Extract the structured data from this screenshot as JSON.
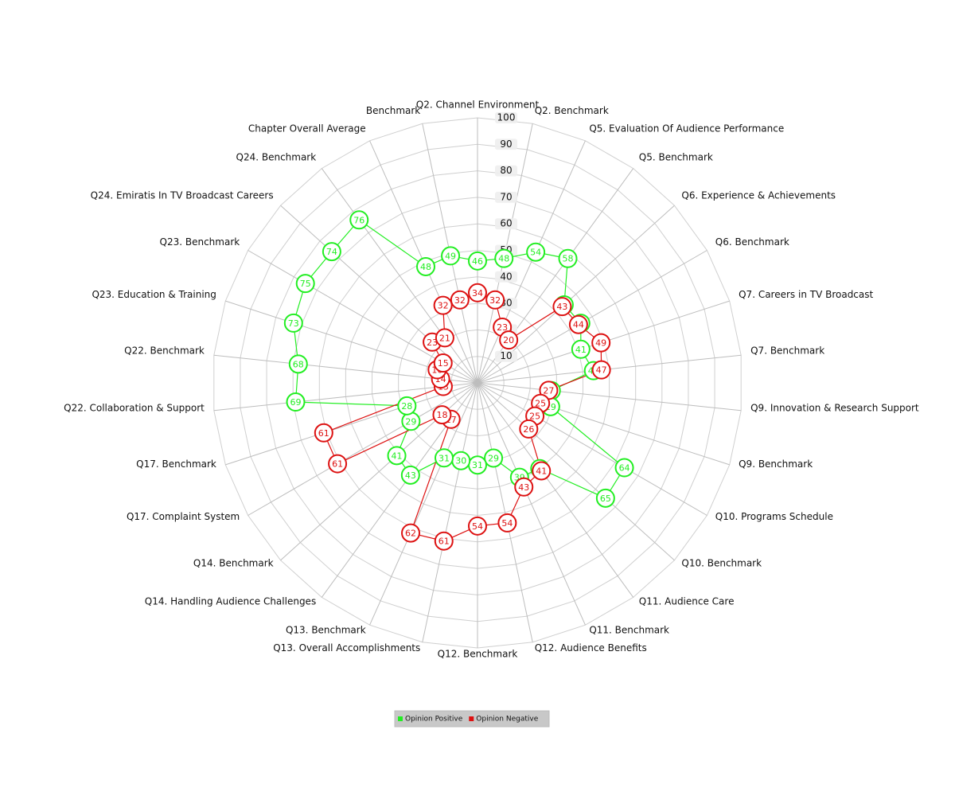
{
  "chart_data": {
    "type": "radar",
    "categories": [
      "Q2. Channel Environment",
      "Q2. Benchmark",
      "Q5. Evaluation Of Audience Performance",
      "Q5. Benchmark",
      "Q6. Experience & Achievements",
      "Q6. Benchmark",
      "Q7. Careers in TV Broadcast",
      "Q7. Benchmark",
      "Q9. Innovation & Research Support",
      "Q9. Benchmark",
      "Q10. Programs Schedule",
      "Q10. Benchmark",
      "Q11. Audience Care",
      "Q11. Benchmark",
      "Q12. Audience Benefits",
      "Q12. Benchmark",
      "Q13. Overall Accomplishments",
      "Q13. Benchmark",
      "Q14. Handling Audience Challenges",
      "Q14. Benchmark",
      "Q17. Complaint System",
      "Q17. Benchmark",
      "Q22. Collaboration & Support",
      "Q22. Benchmark",
      "Q23. Education & Training",
      "Q23. Benchmark",
      "Q24. Emiratis In TV Broadcast Careers",
      "Q24. Benchmark",
      "Chapter Overall Average",
      "Benchmark"
    ],
    "series": [
      {
        "name": "Opinion Positive",
        "color": "#22ee22",
        "values": [
          46,
          48,
          54,
          58,
          44,
          45,
          41,
          44,
          28,
          29,
          64,
          65,
          40,
          39,
          29,
          31,
          30,
          31,
          43,
          41,
          29,
          28,
          69,
          68,
          73,
          75,
          74,
          76,
          48,
          49
        ]
      },
      {
        "name": "Opinion Negative",
        "color": "#dd1111",
        "values": [
          34,
          32,
          23,
          20,
          43,
          44,
          49,
          47,
          27,
          25,
          25,
          26,
          41,
          43,
          54,
          54,
          61,
          62,
          17,
          18,
          61,
          61,
          13,
          14,
          16,
          15,
          23,
          21,
          32,
          32
        ]
      }
    ],
    "ylim": [
      0,
      100
    ],
    "yticks": [
      10,
      20,
      30,
      40,
      50,
      60,
      70,
      80,
      90,
      100
    ],
    "grid": true,
    "legend": "bottom"
  }
}
